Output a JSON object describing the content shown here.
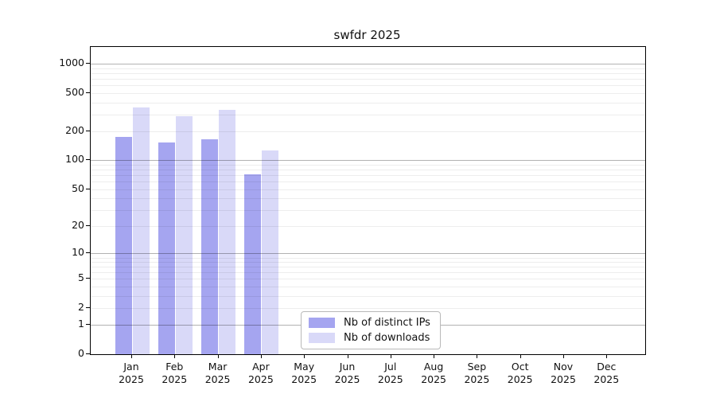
{
  "chart_data": {
    "type": "bar",
    "title": "swfdr 2025",
    "categories": [
      "Jan",
      "Feb",
      "Mar",
      "Apr",
      "May",
      "Jun",
      "Jul",
      "Aug",
      "Sep",
      "Oct",
      "Nov",
      "Dec"
    ],
    "year_label": "2025",
    "series": [
      {
        "name": "Nb of distinct IPs",
        "color": "#a5a5f0",
        "values": [
          175,
          153,
          165,
          71,
          0,
          0,
          0,
          0,
          0,
          0,
          0,
          0
        ]
      },
      {
        "name": "Nb of downloads",
        "color": "#d9d9f8",
        "values": [
          352,
          289,
          333,
          126,
          0,
          0,
          0,
          0,
          0,
          0,
          0,
          0
        ]
      }
    ],
    "yticks": [
      1000,
      500,
      200,
      100,
      50,
      20,
      10,
      5,
      2,
      1,
      0
    ],
    "ylabel": "",
    "xlabel": "",
    "scale": "log1p",
    "grid": "horizontal, drawn above bars",
    "legend_position": "bottom-center-inside",
    "axis_color": "#000000"
  }
}
